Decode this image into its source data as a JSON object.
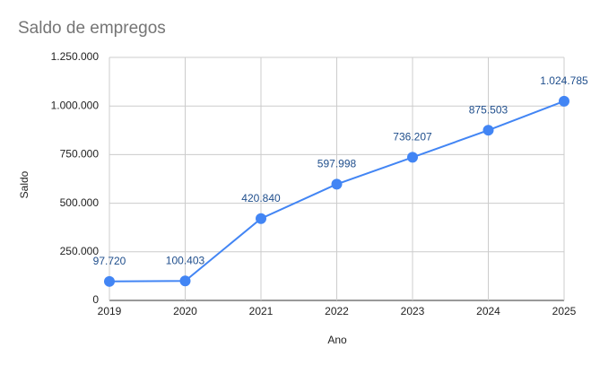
{
  "chart_data": {
    "type": "line",
    "title": "Saldo de empregos",
    "x_label": "Ano",
    "y_label": "Saldo",
    "categories": [
      "2019",
      "2020",
      "2021",
      "2022",
      "2023",
      "2024",
      "2025"
    ],
    "series": [
      {
        "name": "Saldo",
        "color": "#4285f4",
        "values": [
          97720,
          100403,
          420840,
          597998,
          736207,
          875503,
          1024785
        ],
        "value_labels": [
          "97.720",
          "100.403",
          "420.840",
          "597.998",
          "736.207",
          "875.503",
          "1.024.785"
        ]
      }
    ],
    "ylim": [
      0,
      1250000
    ],
    "yticks": [
      0,
      {
        "value": 250000,
        "label": "250.000"
      },
      {
        "value": 500000,
        "label": "500.000"
      },
      {
        "value": 750000,
        "label": "750.000"
      },
      {
        "value": 1000000,
        "label": "1.000.000"
      },
      {
        "value": 1250000,
        "label": "1.250.000"
      }
    ],
    "grid": true
  }
}
